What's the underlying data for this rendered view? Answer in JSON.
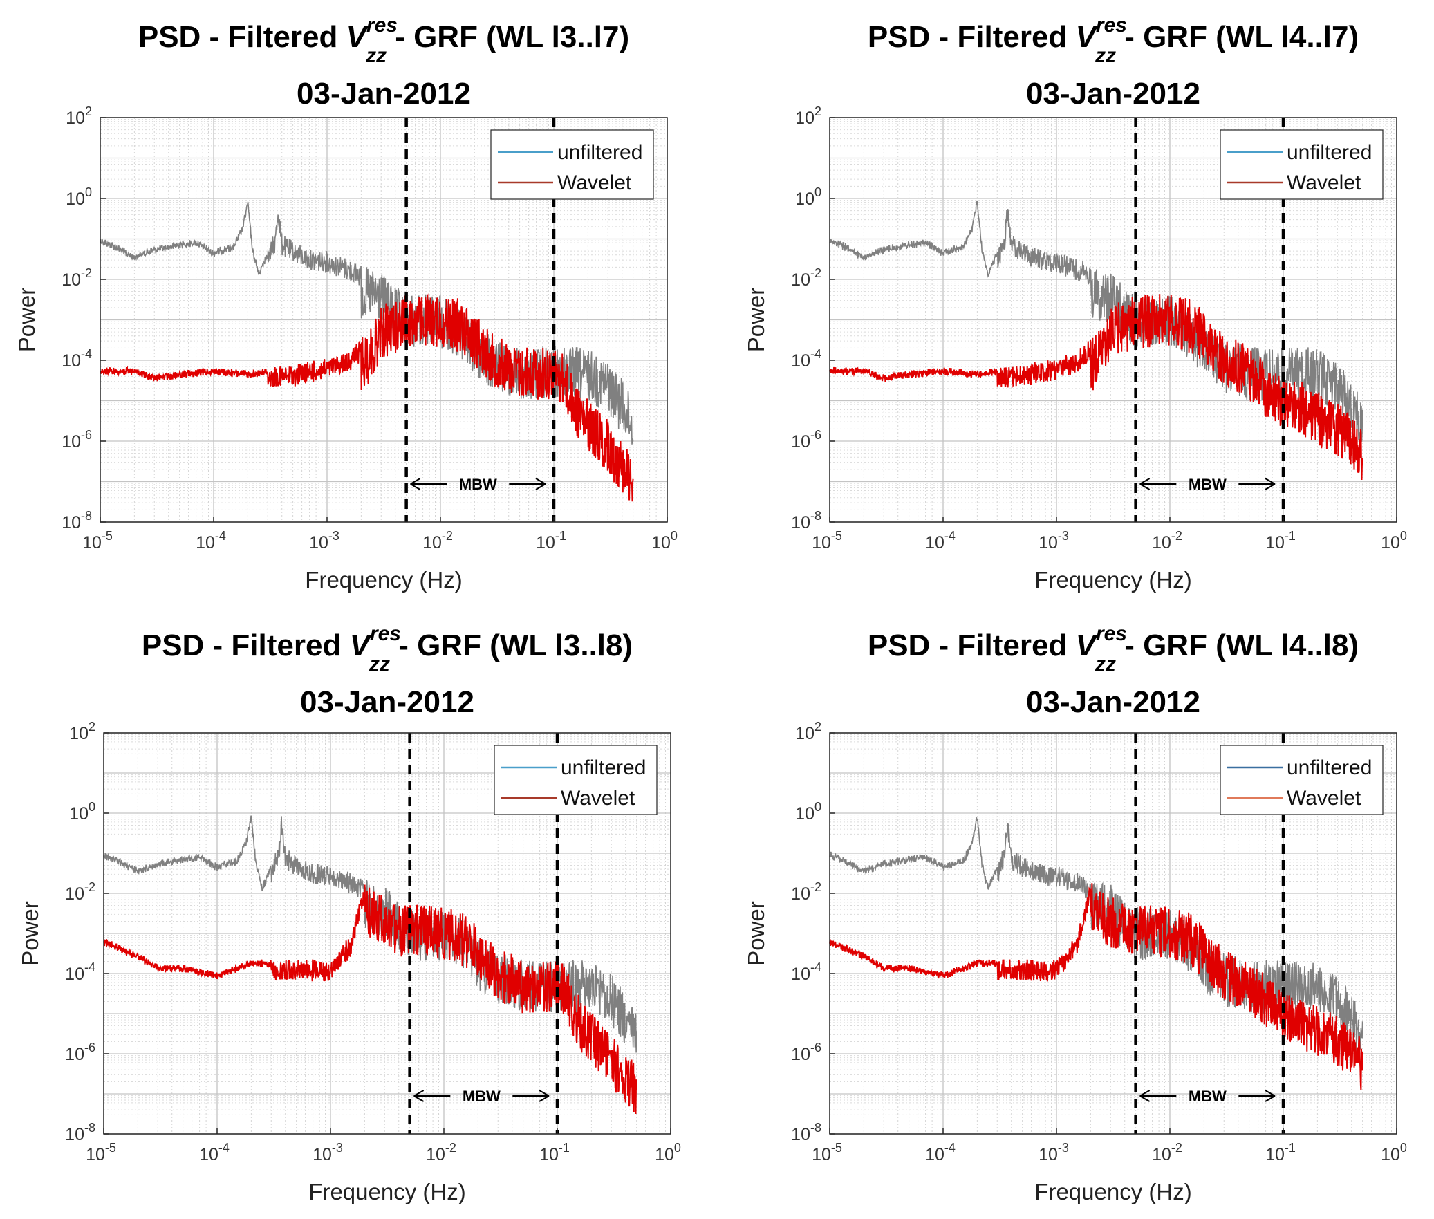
{
  "figure_title": "Power spectral density panels",
  "chart_data": [
    {
      "type": "line",
      "title": {
        "main": "PSD - Filtered",
        "var": "V",
        "sup": "res",
        "sub": "zz",
        "tail": "- GRF (WL l3..l7)",
        "date": "03-Jan-2012"
      },
      "xlabel": "Frequency (Hz)",
      "ylabel": "Power",
      "xscale": "log",
      "yscale": "log",
      "xlim": [
        1e-05,
        1
      ],
      "ylim": [
        1e-08,
        100
      ],
      "x_ticks": [
        {
          "base": "10",
          "exp": "-5"
        },
        {
          "base": "10",
          "exp": "-4"
        },
        {
          "base": "10",
          "exp": "-3"
        },
        {
          "base": "10",
          "exp": "-2"
        },
        {
          "base": "10",
          "exp": "-1"
        },
        {
          "base": "10",
          "exp": "0"
        }
      ],
      "y_ticks": [
        {
          "base": "10",
          "exp": "-8"
        },
        {
          "base": "10",
          "exp": "-6"
        },
        {
          "base": "10",
          "exp": "-4"
        },
        {
          "base": "10",
          "exp": "-2"
        },
        {
          "base": "10",
          "exp": "0"
        },
        {
          "base": "10",
          "exp": "2"
        }
      ],
      "legend": {
        "position": "top-right",
        "entries": [
          {
            "name": "unfiltered",
            "color": "#4a9fca"
          },
          {
            "name": "Wavelet",
            "color": "#a83a2a"
          }
        ]
      },
      "grid": true,
      "mbw": {
        "low_hz": 0.005,
        "high_hz": 0.1,
        "label": "MBW"
      },
      "series": [
        {
          "name": "unfiltered",
          "color": "#808080",
          "x": [
            1e-05,
            1.25e-05,
            1.5e-05,
            1.8e-05,
            2e-05,
            2.5e-05,
            3e-05,
            4e-05,
            5e-05,
            7e-05,
            0.0001,
            0.00012,
            0.00015,
            0.00018,
            0.0002,
            0.00022,
            0.00025,
            0.0003,
            0.00035,
            0.00037,
            0.0004,
            0.0005,
            0.0007,
            0.001,
            0.0015,
            0.002,
            0.003,
            0.004,
            0.005,
            0.007,
            0.01,
            0.015,
            0.02,
            0.03,
            0.05,
            0.07,
            0.1,
            0.15,
            0.2,
            0.3,
            0.4,
            0.5
          ],
          "y": [
            0.1,
            0.08,
            0.06,
            0.045,
            0.04,
            0.05,
            0.06,
            0.07,
            0.08,
            0.09,
            0.05,
            0.06,
            0.07,
            0.2,
            0.9,
            0.06,
            0.015,
            0.05,
            0.15,
            0.8,
            0.12,
            0.08,
            0.05,
            0.045,
            0.03,
            0.02,
            0.015,
            0.006,
            0.004,
            0.004,
            0.004,
            0.002,
            0.0007,
            0.0003,
            0.0002,
            0.0002,
            0.0002,
            0.0002,
            0.00018,
            0.0001,
            3e-05,
            1e-05
          ]
        },
        {
          "name": "Wavelet",
          "color": "#e00000",
          "x": [
            1e-05,
            2e-05,
            3e-05,
            5e-05,
            0.0001,
            0.0002,
            0.0005,
            0.001,
            0.0015,
            0.002,
            0.0025,
            0.003,
            0.004,
            0.005,
            0.007,
            0.01,
            0.015,
            0.02,
            0.03,
            0.05,
            0.07,
            0.1,
            0.12,
            0.15,
            0.2,
            0.3,
            0.4,
            0.5
          ],
          "y": [
            6e-05,
            6e-05,
            4e-05,
            5e-05,
            6e-05,
            5e-05,
            7e-05,
            0.0001,
            0.00015,
            0.0003,
            0.0007,
            0.002,
            0.003,
            0.004,
            0.004,
            0.004,
            0.003,
            0.0015,
            0.0004,
            0.0002,
            0.0002,
            0.0002,
            0.00015,
            3e-05,
            1e-05,
            3e-06,
            1e-06,
            5e-07
          ]
        }
      ]
    },
    {
      "type": "line",
      "title": {
        "main": "PSD - Filtered",
        "var": "V",
        "sup": "res",
        "sub": "zz",
        "tail": "- GRF (WL l4..l7)",
        "date": "03-Jan-2012"
      },
      "xlabel": "Frequency (Hz)",
      "ylabel": "Power",
      "xscale": "log",
      "yscale": "log",
      "xlim": [
        1e-05,
        1
      ],
      "ylim": [
        1e-08,
        100
      ],
      "x_ticks": [
        {
          "base": "10",
          "exp": "-5"
        },
        {
          "base": "10",
          "exp": "-4"
        },
        {
          "base": "10",
          "exp": "-3"
        },
        {
          "base": "10",
          "exp": "-2"
        },
        {
          "base": "10",
          "exp": "-1"
        },
        {
          "base": "10",
          "exp": "0"
        }
      ],
      "y_ticks": [
        {
          "base": "10",
          "exp": "-8"
        },
        {
          "base": "10",
          "exp": "-6"
        },
        {
          "base": "10",
          "exp": "-4"
        },
        {
          "base": "10",
          "exp": "-2"
        },
        {
          "base": "10",
          "exp": "0"
        },
        {
          "base": "10",
          "exp": "2"
        }
      ],
      "legend": {
        "position": "top-right",
        "entries": [
          {
            "name": "unfiltered",
            "color": "#4a9fca"
          },
          {
            "name": "Wavelet",
            "color": "#a83a2a"
          }
        ]
      },
      "grid": true,
      "mbw": {
        "low_hz": 0.005,
        "high_hz": 0.1,
        "label": "MBW"
      },
      "series": [
        {
          "name": "unfiltered",
          "color": "#808080",
          "x": [
            1e-05,
            1.25e-05,
            1.5e-05,
            1.8e-05,
            2e-05,
            2.5e-05,
            3e-05,
            4e-05,
            5e-05,
            7e-05,
            0.0001,
            0.00012,
            0.00015,
            0.00018,
            0.0002,
            0.00022,
            0.00025,
            0.0003,
            0.00035,
            0.00037,
            0.0004,
            0.0005,
            0.0007,
            0.001,
            0.0015,
            0.002,
            0.003,
            0.004,
            0.005,
            0.007,
            0.01,
            0.015,
            0.02,
            0.03,
            0.05,
            0.07,
            0.1,
            0.15,
            0.2,
            0.3,
            0.4,
            0.5
          ],
          "y": [
            0.1,
            0.08,
            0.06,
            0.045,
            0.04,
            0.05,
            0.06,
            0.07,
            0.08,
            0.09,
            0.05,
            0.06,
            0.07,
            0.2,
            0.9,
            0.06,
            0.015,
            0.05,
            0.15,
            0.8,
            0.12,
            0.08,
            0.05,
            0.045,
            0.03,
            0.02,
            0.015,
            0.006,
            0.004,
            0.004,
            0.004,
            0.002,
            0.0007,
            0.0003,
            0.0002,
            0.0002,
            0.0002,
            0.0002,
            0.00018,
            0.0001,
            3e-05,
            1e-05
          ]
        },
        {
          "name": "Wavelet",
          "color": "#e00000",
          "x": [
            1e-05,
            2e-05,
            3e-05,
            5e-05,
            0.0001,
            0.0002,
            0.0005,
            0.001,
            0.0015,
            0.002,
            0.0025,
            0.003,
            0.004,
            0.005,
            0.007,
            0.01,
            0.015,
            0.02,
            0.03,
            0.05,
            0.07,
            0.1,
            0.15,
            0.2,
            0.3,
            0.4,
            0.5
          ],
          "y": [
            6e-05,
            6e-05,
            4e-05,
            5e-05,
            6e-05,
            5e-05,
            7e-05,
            0.0001,
            0.00015,
            0.0003,
            0.0007,
            0.002,
            0.003,
            0.004,
            0.004,
            0.004,
            0.003,
            0.0015,
            0.0004,
            0.0002,
            8e-05,
            4e-05,
            2.5e-05,
            1.5e-05,
            8e-06,
            4e-06,
            2e-06
          ]
        }
      ]
    },
    {
      "type": "line",
      "title": {
        "main": "PSD - Filtered",
        "var": "V",
        "sup": "res",
        "sub": "zz",
        "tail": "- GRF (WL l3..l8)",
        "date": "03-Jan-2012"
      },
      "xlabel": "Frequency (Hz)",
      "ylabel": "Power",
      "xscale": "log",
      "yscale": "log",
      "xlim": [
        1e-05,
        1
      ],
      "ylim": [
        1e-08,
        100
      ],
      "x_ticks": [
        {
          "base": "10",
          "exp": "-5"
        },
        {
          "base": "10",
          "exp": "-4"
        },
        {
          "base": "10",
          "exp": "-3"
        },
        {
          "base": "10",
          "exp": "-2"
        },
        {
          "base": "10",
          "exp": "-1"
        },
        {
          "base": "10",
          "exp": "0"
        }
      ],
      "y_ticks": [
        {
          "base": "10",
          "exp": "-8"
        },
        {
          "base": "10",
          "exp": "-6"
        },
        {
          "base": "10",
          "exp": "-4"
        },
        {
          "base": "10",
          "exp": "-2"
        },
        {
          "base": "10",
          "exp": "0"
        },
        {
          "base": "10",
          "exp": "2"
        }
      ],
      "legend": {
        "position": "top-right",
        "entries": [
          {
            "name": "unfiltered",
            "color": "#4a9fca"
          },
          {
            "name": "Wavelet",
            "color": "#a83a2a"
          }
        ]
      },
      "grid": true,
      "mbw": {
        "low_hz": 0.005,
        "high_hz": 0.1,
        "label": "MBW"
      },
      "series": [
        {
          "name": "unfiltered",
          "color": "#808080",
          "x": [
            1e-05,
            1.25e-05,
            1.5e-05,
            1.8e-05,
            2e-05,
            2.5e-05,
            3e-05,
            4e-05,
            5e-05,
            7e-05,
            0.0001,
            0.00012,
            0.00015,
            0.00018,
            0.0002,
            0.00022,
            0.00025,
            0.0003,
            0.00035,
            0.00037,
            0.0004,
            0.0005,
            0.0007,
            0.001,
            0.0015,
            0.002,
            0.003,
            0.004,
            0.005,
            0.007,
            0.01,
            0.015,
            0.02,
            0.03,
            0.05,
            0.07,
            0.1,
            0.15,
            0.2,
            0.3,
            0.4,
            0.5
          ],
          "y": [
            0.1,
            0.08,
            0.06,
            0.045,
            0.04,
            0.05,
            0.06,
            0.07,
            0.08,
            0.09,
            0.05,
            0.06,
            0.07,
            0.2,
            0.9,
            0.06,
            0.015,
            0.05,
            0.15,
            0.8,
            0.12,
            0.08,
            0.05,
            0.045,
            0.03,
            0.02,
            0.015,
            0.006,
            0.004,
            0.004,
            0.004,
            0.002,
            0.0007,
            0.0003,
            0.0002,
            0.0002,
            0.0002,
            0.0002,
            0.00018,
            0.0001,
            3e-05,
            1e-05
          ]
        },
        {
          "name": "Wavelet",
          "color": "#e00000",
          "x": [
            1e-05,
            2e-05,
            3e-05,
            5e-05,
            0.0001,
            0.0002,
            0.0005,
            0.001,
            0.0015,
            0.002,
            0.003,
            0.004,
            0.005,
            0.007,
            0.01,
            0.015,
            0.02,
            0.03,
            0.05,
            0.07,
            0.1,
            0.12,
            0.15,
            0.2,
            0.3,
            0.4,
            0.5
          ],
          "y": [
            0.0007,
            0.0003,
            0.00015,
            0.00015,
            0.0001,
            0.0002,
            0.0002,
            0.0002,
            0.0008,
            0.02,
            0.008,
            0.005,
            0.005,
            0.005,
            0.004,
            0.003,
            0.0015,
            0.0004,
            0.0002,
            0.0002,
            0.0002,
            0.00015,
            3e-05,
            1e-05,
            3e-06,
            1e-06,
            5e-07
          ]
        }
      ]
    },
    {
      "type": "line",
      "title": {
        "main": "PSD - Filtered",
        "var": "V",
        "sup": "res",
        "sub": "zz",
        "tail": "- GRF (WL l4..l8)",
        "date": "03-Jan-2012"
      },
      "xlabel": "Frequency (Hz)",
      "ylabel": "Power",
      "xscale": "log",
      "yscale": "log",
      "xlim": [
        1e-05,
        1
      ],
      "ylim": [
        1e-08,
        100
      ],
      "x_ticks": [
        {
          "base": "10",
          "exp": "-5"
        },
        {
          "base": "10",
          "exp": "-4"
        },
        {
          "base": "10",
          "exp": "-3"
        },
        {
          "base": "10",
          "exp": "-2"
        },
        {
          "base": "10",
          "exp": "-1"
        },
        {
          "base": "10",
          "exp": "0"
        }
      ],
      "y_ticks": [
        {
          "base": "10",
          "exp": "-8"
        },
        {
          "base": "10",
          "exp": "-6"
        },
        {
          "base": "10",
          "exp": "-4"
        },
        {
          "base": "10",
          "exp": "-2"
        },
        {
          "base": "10",
          "exp": "0"
        },
        {
          "base": "10",
          "exp": "2"
        }
      ],
      "legend": {
        "position": "top-right",
        "entries": [
          {
            "name": "unfiltered",
            "color": "#3a6fa0"
          },
          {
            "name": "Wavelet",
            "color": "#e07a5a"
          }
        ]
      },
      "grid": true,
      "mbw": {
        "low_hz": 0.005,
        "high_hz": 0.1,
        "label": "MBW"
      },
      "series": [
        {
          "name": "unfiltered",
          "color": "#808080",
          "x": [
            1e-05,
            1.25e-05,
            1.5e-05,
            1.8e-05,
            2e-05,
            2.5e-05,
            3e-05,
            4e-05,
            5e-05,
            7e-05,
            0.0001,
            0.00012,
            0.00015,
            0.00018,
            0.0002,
            0.00022,
            0.00025,
            0.0003,
            0.00035,
            0.00037,
            0.0004,
            0.0005,
            0.0007,
            0.001,
            0.0015,
            0.002,
            0.003,
            0.004,
            0.005,
            0.007,
            0.01,
            0.015,
            0.02,
            0.03,
            0.05,
            0.07,
            0.1,
            0.15,
            0.2,
            0.3,
            0.4,
            0.5
          ],
          "y": [
            0.1,
            0.08,
            0.06,
            0.045,
            0.04,
            0.05,
            0.06,
            0.07,
            0.08,
            0.09,
            0.05,
            0.06,
            0.07,
            0.2,
            0.9,
            0.06,
            0.015,
            0.05,
            0.15,
            0.8,
            0.12,
            0.08,
            0.05,
            0.045,
            0.03,
            0.02,
            0.015,
            0.006,
            0.004,
            0.004,
            0.004,
            0.002,
            0.0007,
            0.0003,
            0.0002,
            0.0002,
            0.0002,
            0.0002,
            0.00018,
            0.0001,
            3e-05,
            1e-05
          ]
        },
        {
          "name": "Wavelet",
          "color": "#e00000",
          "x": [
            1e-05,
            2e-05,
            3e-05,
            5e-05,
            0.0001,
            0.0002,
            0.0005,
            0.001,
            0.0015,
            0.002,
            0.003,
            0.004,
            0.005,
            0.007,
            0.01,
            0.015,
            0.02,
            0.03,
            0.05,
            0.07,
            0.1,
            0.15,
            0.2,
            0.3,
            0.4,
            0.5
          ],
          "y": [
            0.0007,
            0.0003,
            0.00015,
            0.00015,
            0.0001,
            0.0002,
            0.0002,
            0.0002,
            0.0008,
            0.02,
            0.008,
            0.005,
            0.005,
            0.005,
            0.004,
            0.003,
            0.0015,
            0.0004,
            0.0002,
            8e-05,
            4e-05,
            2.5e-05,
            1.5e-05,
            8e-06,
            4e-06,
            2e-06
          ]
        }
      ]
    }
  ]
}
